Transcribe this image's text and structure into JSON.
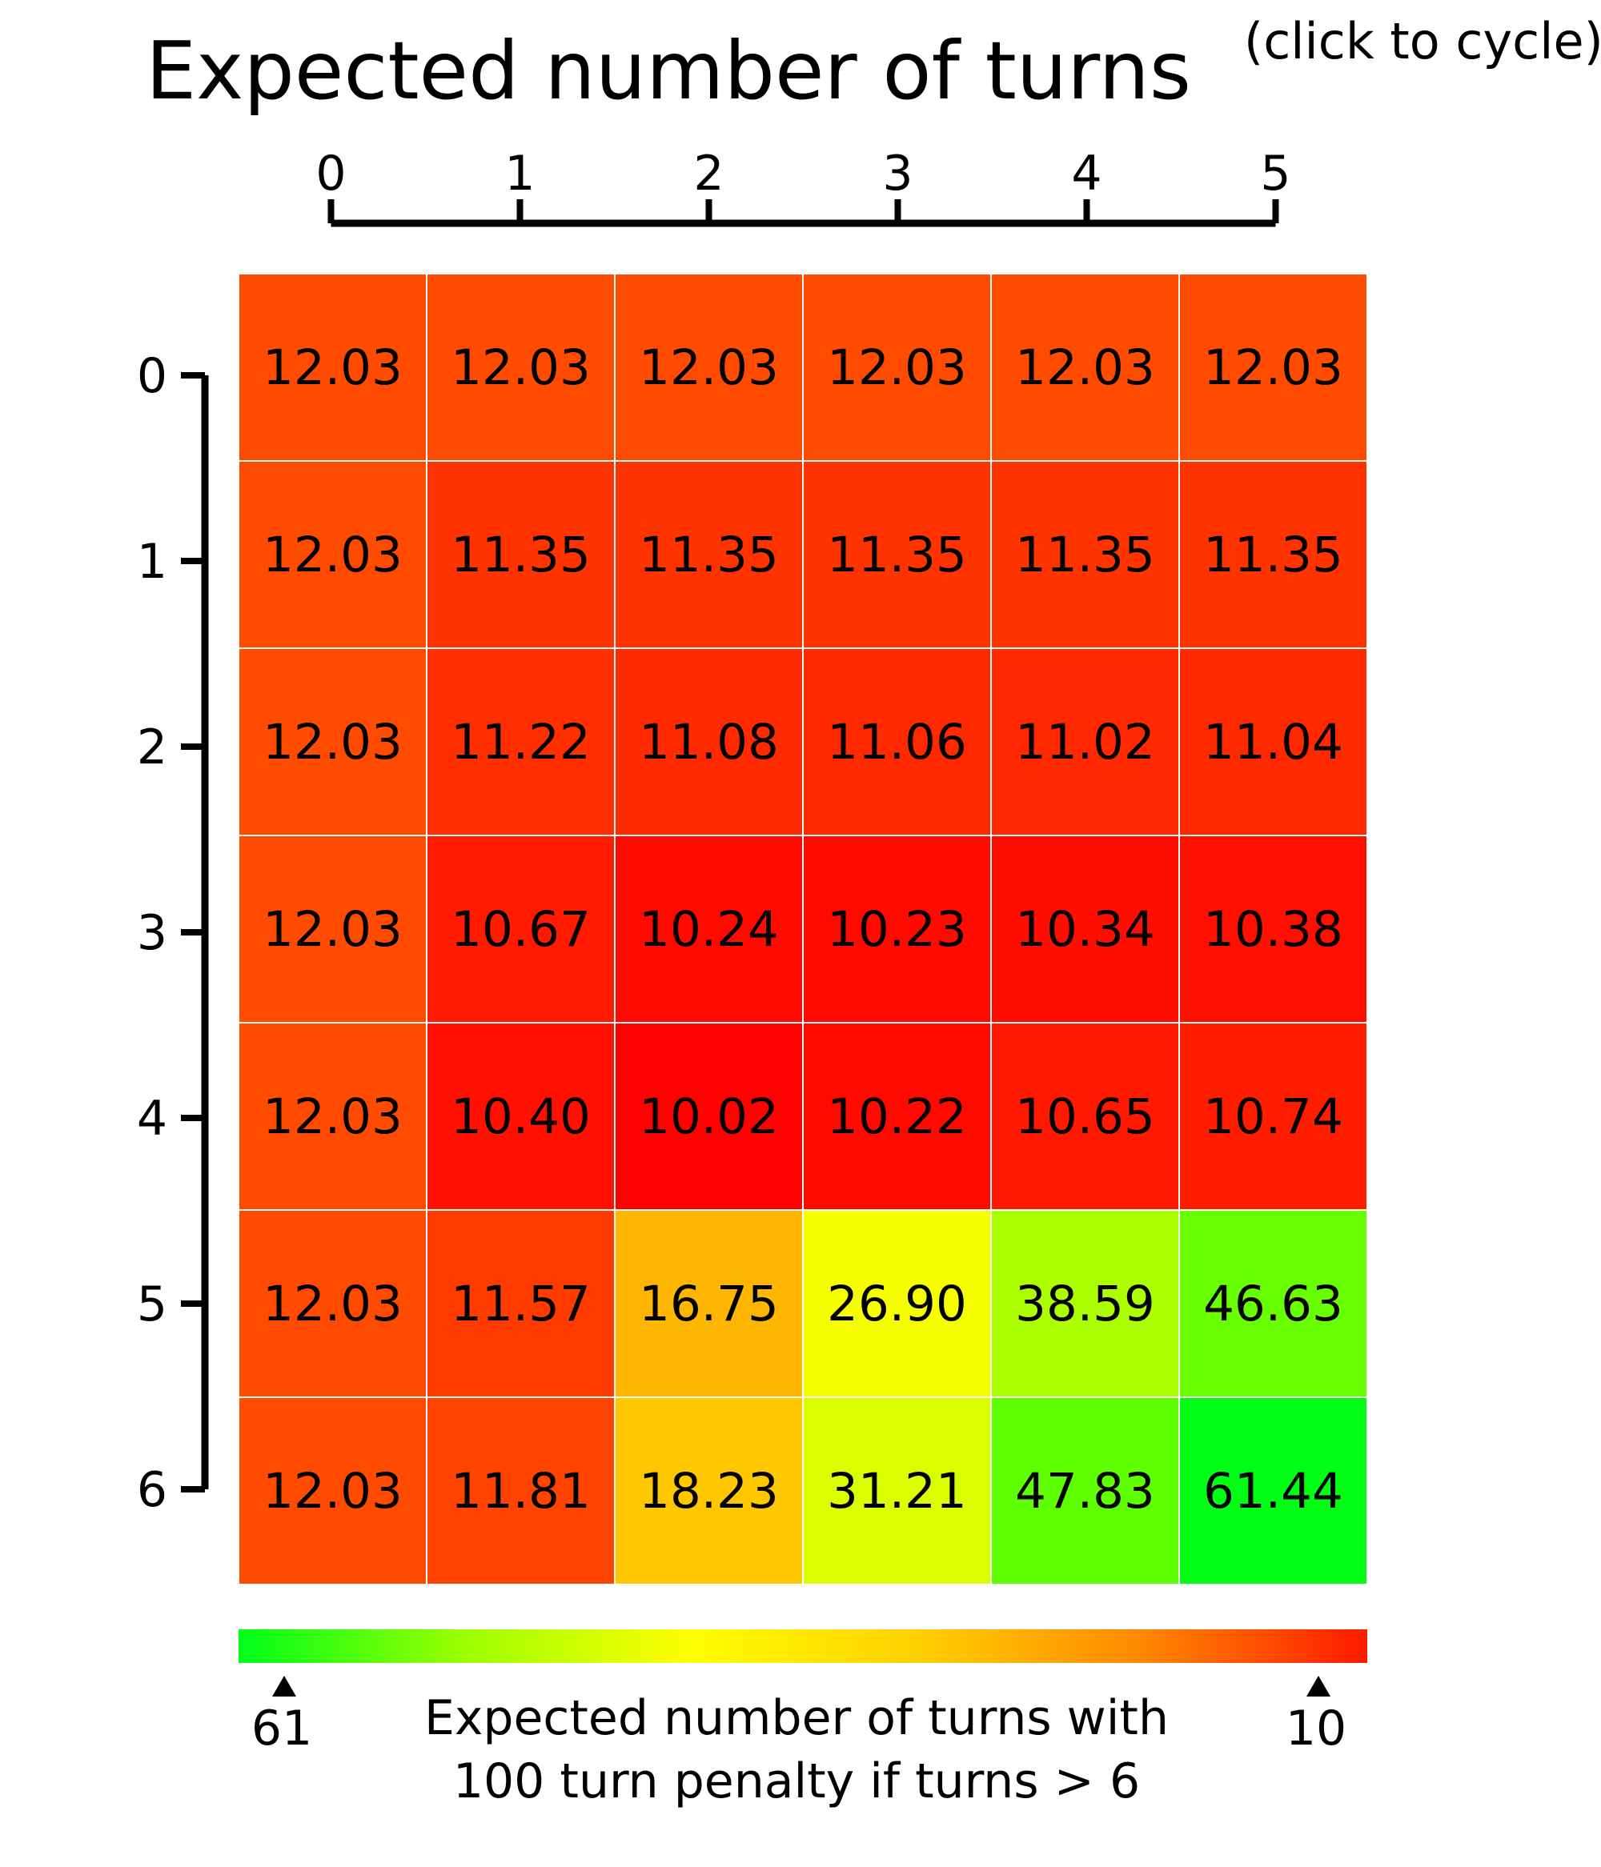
{
  "title": "Expected number of turns",
  "cycle_label": "(click to cycle)",
  "chart_data": {
    "type": "heatmap",
    "title": "Expected number of turns",
    "x_ticks": [
      "0",
      "1",
      "2",
      "3",
      "4",
      "5"
    ],
    "y_ticks": [
      "0",
      "1",
      "2",
      "3",
      "4",
      "5",
      "6"
    ],
    "values": [
      [
        "12.03",
        "12.03",
        "12.03",
        "12.03",
        "12.03",
        "12.03"
      ],
      [
        "12.03",
        "11.35",
        "11.35",
        "11.35",
        "11.35",
        "11.35"
      ],
      [
        "12.03",
        "11.22",
        "11.08",
        "11.06",
        "11.02",
        "11.04"
      ],
      [
        "12.03",
        "10.67",
        "10.24",
        "10.23",
        "10.34",
        "10.38"
      ],
      [
        "12.03",
        "10.40",
        "10.02",
        "10.22",
        "10.65",
        "10.74"
      ],
      [
        "12.03",
        "11.57",
        "16.75",
        "26.90",
        "38.59",
        "46.63"
      ],
      [
        "12.03",
        "11.81",
        "18.23",
        "31.21",
        "47.83",
        "61.44"
      ]
    ],
    "colorscale": {
      "left_label": "61",
      "right_label": "10",
      "label_line1": "Expected number of turns with",
      "label_line2": "100 turn penalty if turns > 6",
      "stops": [
        "#00ff1a",
        "#9cff00",
        "#ffff00",
        "#ffd000",
        "#ff8800",
        "#ff1a00"
      ]
    }
  }
}
